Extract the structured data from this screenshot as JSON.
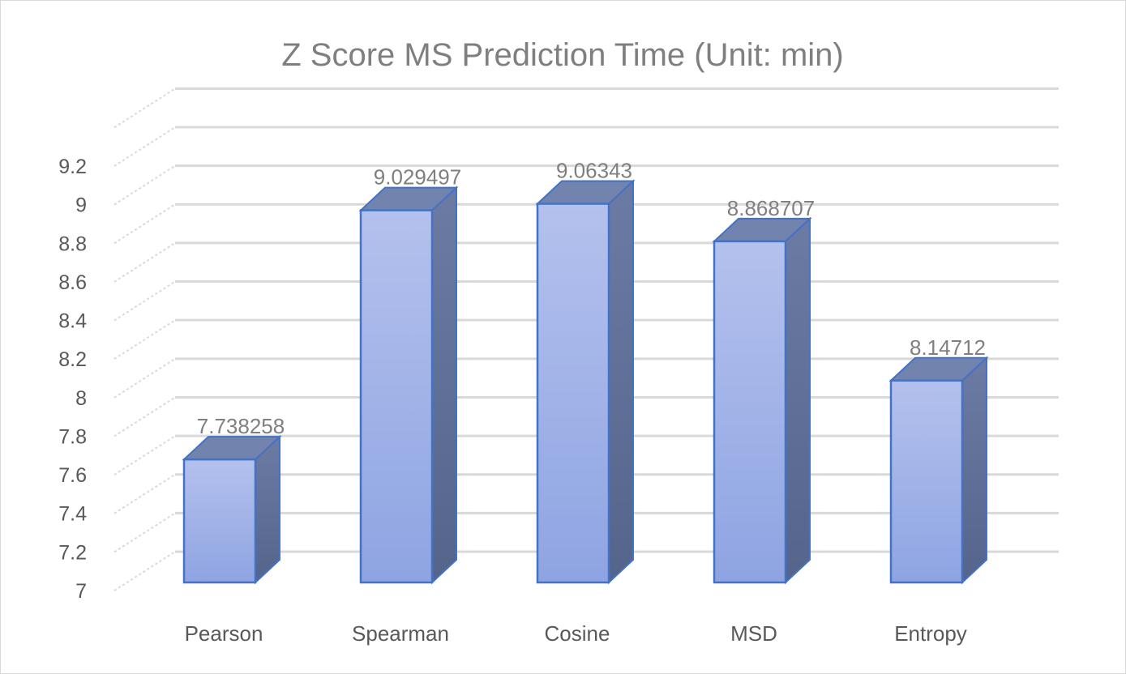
{
  "chart_data": {
    "type": "bar",
    "style": "3d-column",
    "title": "Z Score MS Prediction Time (Unit: min)",
    "xlabel": "",
    "ylabel": "",
    "categories": [
      "Pearson",
      "Spearman",
      "Cosine",
      "MSD",
      "Entropy"
    ],
    "values": [
      7.738258,
      9.029497,
      9.06343,
      8.868707,
      8.14712
    ],
    "data_labels": [
      "7.738258",
      "9.029497",
      "9.06343",
      "8.868707",
      "8.14712"
    ],
    "ylim": [
      7,
      9.2
    ],
    "yticks": [
      "7",
      "7.2",
      "7.4",
      "7.6",
      "7.8",
      "8",
      "8.2",
      "8.4",
      "8.6",
      "8.8",
      "9",
      "9.2"
    ],
    "grid": true,
    "legend": "none",
    "colors": {
      "bar_front_top": "#b4c1ed",
      "bar_front_bottom": "#8ea4e2",
      "bar_side": "#5d6e96",
      "bar_top": "#7283ad",
      "bar_outline": "#4472c4",
      "gridline": "#d9d9d9"
    }
  }
}
